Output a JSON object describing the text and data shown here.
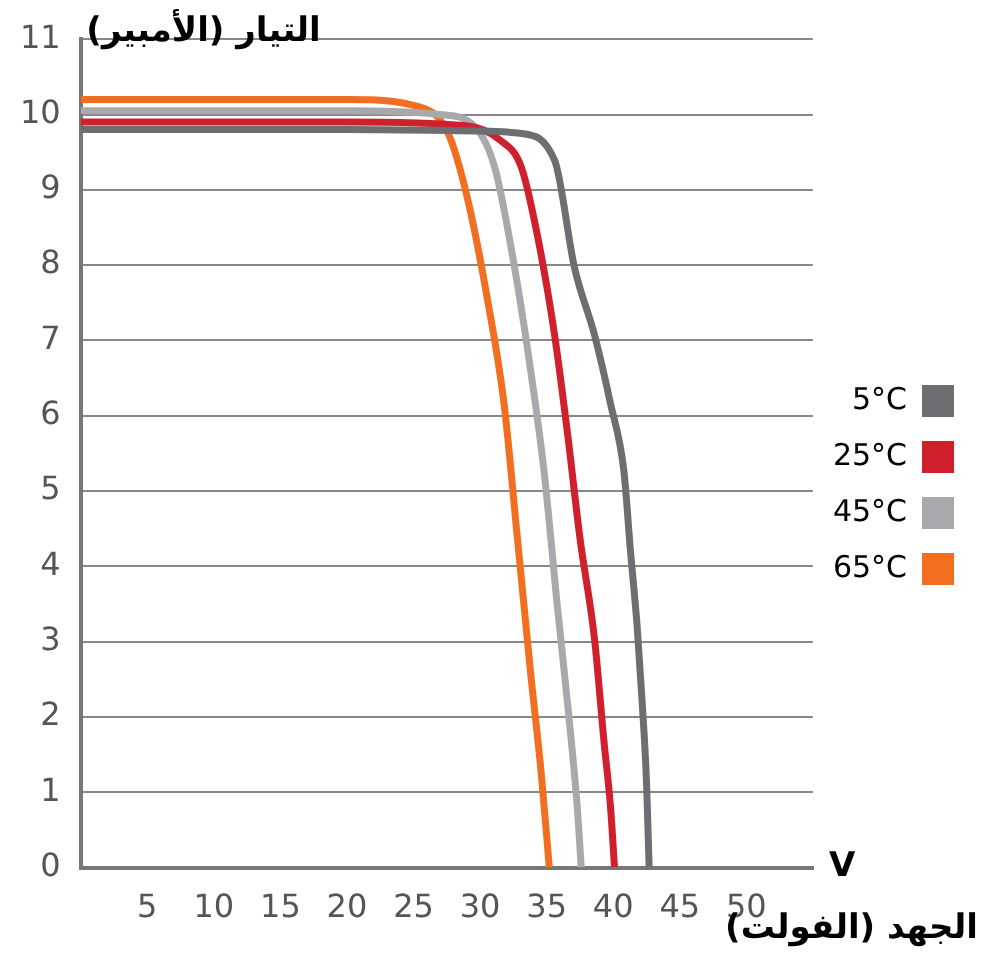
{
  "chart_data": {
    "type": "line",
    "xlabel": "الجهد (الفولت)",
    "ylabel": "التيار (الأمبير)",
    "annotations": [
      "V"
    ],
    "xlim": [
      0,
      55
    ],
    "xticks": [
      5,
      10,
      15,
      20,
      25,
      30,
      35,
      40,
      45,
      50
    ],
    "ylim": [
      0,
      11
    ],
    "yticks": [
      0,
      1,
      2,
      3,
      4,
      5,
      6,
      7,
      8,
      9,
      10,
      11
    ],
    "grid": "y",
    "legend": "right",
    "marker": "none",
    "line_style": "solid",
    "series": [
      {
        "name": "5°C",
        "color": "#6d6e71",
        "x": [
          0,
          20,
          30,
          33,
          35.6,
          37.1,
          38.6,
          39.8,
          40.8,
          41.3,
          41.8,
          42.2,
          42.5,
          42.7
        ],
        "values": [
          9.8,
          9.8,
          9.78,
          9.75,
          9.39,
          7.96,
          7.07,
          6.16,
          5.27,
          4.2,
          3.2,
          2.13,
          1.15,
          0
        ]
      },
      {
        "name": "25°C",
        "color": "#d0202e",
        "x": [
          0,
          20,
          29,
          31.5,
          33.1,
          34.3,
          35.6,
          36.6,
          37.5,
          38.6,
          39.3,
          39.8,
          40.1
        ],
        "values": [
          9.9,
          9.9,
          9.85,
          9.66,
          9.3,
          8.4,
          7.07,
          5.72,
          4.38,
          3.03,
          1.69,
          0.8,
          0
        ]
      },
      {
        "name": "45°C",
        "color": "#a7a9ac",
        "x": [
          0,
          20,
          27,
          29.6,
          31.1,
          32.6,
          33.8,
          34.8,
          35.8,
          36.6,
          37.3,
          37.6
        ],
        "values": [
          10.05,
          10.05,
          10,
          9.84,
          9.3,
          7.96,
          6.6,
          5.27,
          3.48,
          2.13,
          0.8,
          0
        ]
      },
      {
        "name": "65°C",
        "color": "#f26f21",
        "x": [
          0,
          20,
          25.5,
          27.6,
          29.1,
          30.6,
          31.8,
          32.8,
          33.8,
          34.6,
          35.2
        ],
        "values": [
          10.2,
          10.2,
          10.1,
          9.75,
          8.85,
          7.5,
          6.16,
          4.38,
          2.58,
          1.24,
          0
        ]
      }
    ]
  }
}
